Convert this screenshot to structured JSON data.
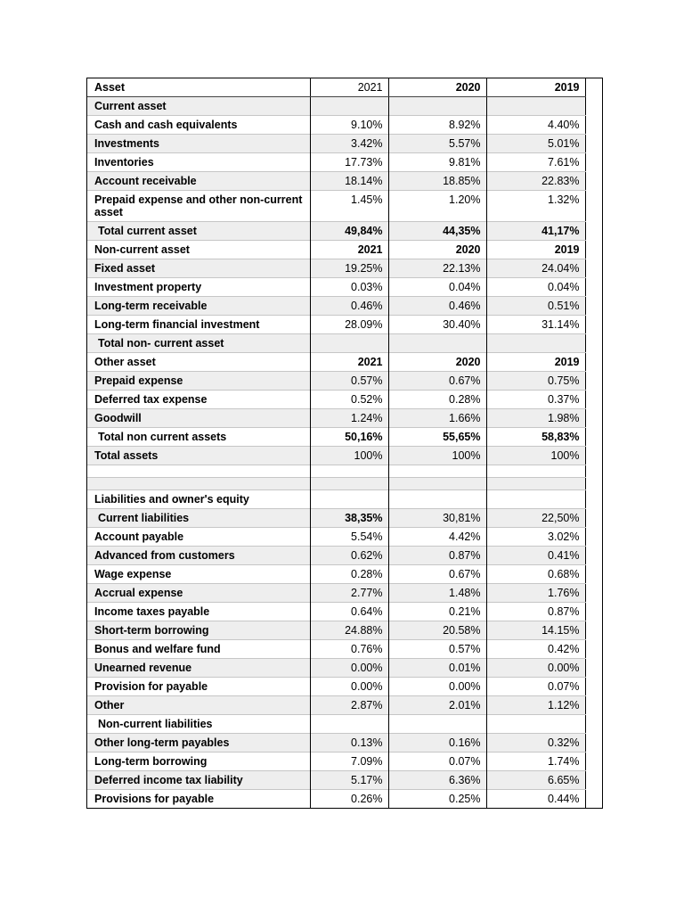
{
  "table": {
    "header": {
      "label": "Asset",
      "values": [
        "2021",
        "2020",
        "2019"
      ],
      "values_bold": [
        false,
        true,
        true
      ]
    },
    "rows": [
      {
        "label": "Current asset",
        "values": [
          "",
          "",
          ""
        ]
      },
      {
        "label": "Cash and cash equivalents",
        "values": [
          "9.10%",
          "8.92%",
          "4.40%"
        ]
      },
      {
        "label": "Investments",
        "values": [
          "3.42%",
          "5.57%",
          "5.01%"
        ]
      },
      {
        "label": "Inventories",
        "values": [
          "17.73%",
          "9.81%",
          "7.61%"
        ]
      },
      {
        "label": "Account receivable",
        "values": [
          "18.14%",
          "18.85%",
          "22.83%"
        ]
      },
      {
        "label": "Prepaid expense and other non-current asset",
        "values": [
          "1.45%",
          "1.20%",
          "1.32%"
        ]
      },
      {
        "label": "Total current asset",
        "indent": true,
        "values": [
          "49,84%",
          "44,35%",
          "41,17%"
        ],
        "values_bold": [
          true,
          true,
          true
        ]
      },
      {
        "label": "Non-current asset",
        "values": [
          "2021",
          "2020",
          "2019"
        ],
        "values_bold": [
          true,
          true,
          true
        ]
      },
      {
        "label": "Fixed asset",
        "values": [
          "19.25%",
          "22.13%",
          "24.04%"
        ]
      },
      {
        "label": "Investment property",
        "values": [
          "0.03%",
          "0.04%",
          "0.04%"
        ]
      },
      {
        "label": "Long-term receivable",
        "values": [
          "0.46%",
          "0.46%",
          "0.51%"
        ]
      },
      {
        "label": "Long-term financial investment",
        "values": [
          "28.09%",
          "30.40%",
          "31.14%"
        ]
      },
      {
        "label": "Total non- current asset",
        "indent": true,
        "values": [
          "",
          "",
          ""
        ]
      },
      {
        "label": "Other asset",
        "values": [
          "2021",
          "2020",
          "2019"
        ],
        "values_bold": [
          true,
          true,
          true
        ]
      },
      {
        "label": "Prepaid expense",
        "values": [
          "0.57%",
          "0.67%",
          "0.75%"
        ]
      },
      {
        "label": "Deferred tax expense",
        "values": [
          "0.52%",
          "0.28%",
          "0.37%"
        ]
      },
      {
        "label": "Goodwill",
        "values": [
          "1.24%",
          "1.66%",
          "1.98%"
        ]
      },
      {
        "label": "Total non current assets",
        "indent": true,
        "values": [
          "50,16%",
          "55,65%",
          "58,83%"
        ],
        "values_bold": [
          true,
          true,
          true
        ]
      },
      {
        "label": "Total assets",
        "values": [
          "100%",
          "100%",
          "100%"
        ]
      },
      {
        "label": "",
        "values": [
          "",
          "",
          ""
        ]
      },
      {
        "label": "",
        "values": [
          "",
          "",
          ""
        ]
      },
      {
        "label": "Liabilities and owner's equity",
        "values": [
          "",
          "",
          ""
        ]
      },
      {
        "label": "Current liabilities",
        "indent": true,
        "values": [
          "38,35%",
          "30,81%",
          "22,50%"
        ],
        "values_bold": [
          true,
          false,
          false
        ]
      },
      {
        "label": "Account payable",
        "values": [
          "5.54%",
          "4.42%",
          "3.02%"
        ]
      },
      {
        "label": "Advanced from customers",
        "values": [
          "0.62%",
          "0.87%",
          "0.41%"
        ]
      },
      {
        "label": "Wage expense",
        "values": [
          "0.28%",
          "0.67%",
          "0.68%"
        ]
      },
      {
        "label": "Accrual expense",
        "values": [
          "2.77%",
          "1.48%",
          "1.76%"
        ]
      },
      {
        "label": "Income taxes payable",
        "values": [
          "0.64%",
          "0.21%",
          "0.87%"
        ]
      },
      {
        "label": "Short-term borrowing",
        "values": [
          "24.88%",
          "20.58%",
          "14.15%"
        ]
      },
      {
        "label": "Bonus and welfare fund",
        "values": [
          "0.76%",
          "0.57%",
          "0.42%"
        ]
      },
      {
        "label": "Unearned revenue",
        "values": [
          "0.00%",
          "0.01%",
          "0.00%"
        ]
      },
      {
        "label": "Provision for payable",
        "values": [
          "0.00%",
          "0.00%",
          "0.07%"
        ]
      },
      {
        "label": "Other",
        "values": [
          "2.87%",
          "2.01%",
          "1.12%"
        ]
      },
      {
        "label": "Non-current liabilities",
        "indent": true,
        "values": [
          "",
          "",
          ""
        ]
      },
      {
        "label": "Other long-term payables",
        "values": [
          "0.13%",
          "0.16%",
          "0.32%"
        ]
      },
      {
        "label": "Long-term borrowing",
        "values": [
          "7.09%",
          "0.07%",
          "1.74%"
        ]
      },
      {
        "label": "Deferred income tax liability",
        "values": [
          "5.17%",
          "6.36%",
          "6.65%"
        ]
      },
      {
        "label": "Provisions for payable",
        "values": [
          "0.26%",
          "0.25%",
          "0.44%"
        ]
      }
    ]
  }
}
